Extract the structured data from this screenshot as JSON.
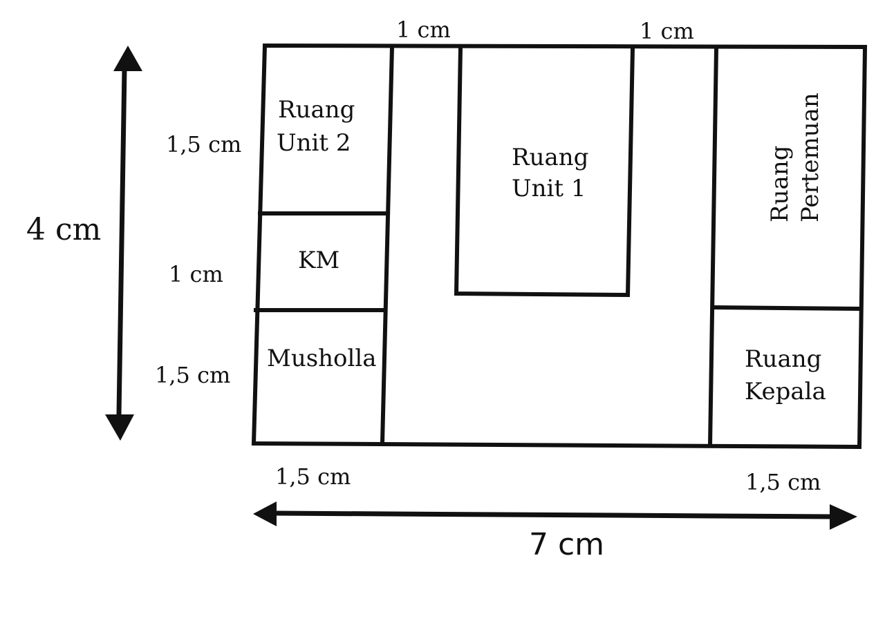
{
  "rooms": {
    "unit2": {
      "line1": "Ruang",
      "line2": "Unit 2"
    },
    "km": {
      "label": "KM"
    },
    "musholla": {
      "label": "Musholla"
    },
    "unit1": {
      "line1": "Ruang",
      "line2": "Unit 1"
    },
    "pertemuan": {
      "line1": "Ruang",
      "line2": "Pertemuan"
    },
    "kepala": {
      "line1": "Ruang",
      "line2": "Kepala"
    }
  },
  "dimensions": {
    "top_left_gap": "1 cm",
    "top_right_gap": "1 cm",
    "left_unit2": "1,5 cm",
    "left_km": "1 cm",
    "left_musholla": "1,5 cm",
    "bottom_left": "1,5 cm",
    "bottom_right": "1,5 cm",
    "total_height": "4 cm",
    "total_width": "7 cm"
  }
}
